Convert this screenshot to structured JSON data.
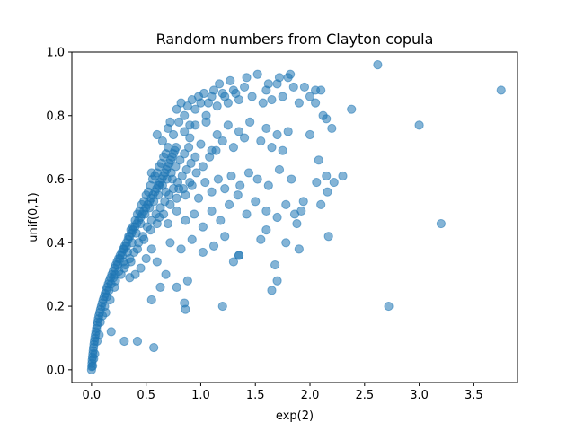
{
  "chart_data": {
    "type": "scatter",
    "title": "Random numbers from Clayton copula",
    "xlabel": "exp(2)",
    "ylabel": "unif(0,1)",
    "xlim": [
      -0.18,
      3.9
    ],
    "ylim": [
      -0.04,
      1.0
    ],
    "xticks": [
      0.0,
      0.5,
      1.0,
      1.5,
      2.0,
      2.5,
      3.0,
      3.5
    ],
    "xtick_labels": [
      "0.0",
      "0.5",
      "1.0",
      "1.5",
      "2.0",
      "2.5",
      "3.0",
      "3.5"
    ],
    "yticks": [
      0.0,
      0.2,
      0.4,
      0.6,
      0.8,
      1.0
    ],
    "ytick_labels": [
      "0.0",
      "0.2",
      "0.4",
      "0.6",
      "0.8",
      "1.0"
    ],
    "grid": false,
    "marker_color": "#1f77b4",
    "marker_opacity": 0.55,
    "series": [
      {
        "values": [
          [
            0.0,
            0.0
          ],
          [
            0.002,
            0.01
          ],
          [
            0.004,
            0.02
          ],
          [
            0.006,
            0.03
          ],
          [
            0.009,
            0.04
          ],
          [
            0.012,
            0.05
          ],
          [
            0.015,
            0.06
          ],
          [
            0.018,
            0.07
          ],
          [
            0.022,
            0.08
          ],
          [
            0.026,
            0.09
          ],
          [
            0.03,
            0.1
          ],
          [
            0.035,
            0.11
          ],
          [
            0.04,
            0.12
          ],
          [
            0.045,
            0.13
          ],
          [
            0.05,
            0.14
          ],
          [
            0.056,
            0.15
          ],
          [
            0.062,
            0.16
          ],
          [
            0.068,
            0.17
          ],
          [
            0.075,
            0.18
          ],
          [
            0.082,
            0.19
          ],
          [
            0.09,
            0.2
          ],
          [
            0.098,
            0.21
          ],
          [
            0.106,
            0.22
          ],
          [
            0.115,
            0.23
          ],
          [
            0.124,
            0.24
          ],
          [
            0.133,
            0.25
          ],
          [
            0.143,
            0.26
          ],
          [
            0.153,
            0.27
          ],
          [
            0.164,
            0.28
          ],
          [
            0.175,
            0.29
          ],
          [
            0.186,
            0.3
          ],
          [
            0.198,
            0.31
          ],
          [
            0.21,
            0.32
          ],
          [
            0.222,
            0.33
          ],
          [
            0.235,
            0.34
          ],
          [
            0.248,
            0.35
          ],
          [
            0.262,
            0.36
          ],
          [
            0.276,
            0.37
          ],
          [
            0.29,
            0.38
          ],
          [
            0.305,
            0.39
          ],
          [
            0.32,
            0.4
          ],
          [
            0.335,
            0.41
          ],
          [
            0.35,
            0.42
          ],
          [
            0.366,
            0.43
          ],
          [
            0.382,
            0.44
          ],
          [
            0.398,
            0.45
          ],
          [
            0.414,
            0.46
          ],
          [
            0.43,
            0.47
          ],
          [
            0.447,
            0.48
          ],
          [
            0.464,
            0.49
          ],
          [
            0.48,
            0.5
          ],
          [
            0.497,
            0.51
          ],
          [
            0.514,
            0.52
          ],
          [
            0.53,
            0.53
          ],
          [
            0.547,
            0.54
          ],
          [
            0.563,
            0.55
          ],
          [
            0.58,
            0.56
          ],
          [
            0.596,
            0.57
          ],
          [
            0.612,
            0.58
          ],
          [
            0.628,
            0.59
          ],
          [
            0.643,
            0.6
          ],
          [
            0.658,
            0.61
          ],
          [
            0.672,
            0.62
          ],
          [
            0.686,
            0.63
          ],
          [
            0.7,
            0.64
          ],
          [
            0.713,
            0.65
          ],
          [
            0.726,
            0.66
          ],
          [
            0.738,
            0.67
          ],
          [
            0.75,
            0.68
          ],
          [
            0.762,
            0.69
          ],
          [
            0.774,
            0.7
          ],
          [
            0.01,
            0.012
          ],
          [
            0.02,
            0.035
          ],
          [
            0.03,
            0.05
          ],
          [
            0.05,
            0.09
          ],
          [
            0.07,
            0.11
          ],
          [
            0.08,
            0.15
          ],
          [
            0.1,
            0.17
          ],
          [
            0.12,
            0.2
          ],
          [
            0.14,
            0.23
          ],
          [
            0.16,
            0.25
          ],
          [
            0.18,
            0.27
          ],
          [
            0.2,
            0.29
          ],
          [
            0.22,
            0.3
          ],
          [
            0.24,
            0.33
          ],
          [
            0.26,
            0.35
          ],
          [
            0.28,
            0.36
          ],
          [
            0.3,
            0.38
          ],
          [
            0.32,
            0.39
          ],
          [
            0.34,
            0.42
          ],
          [
            0.36,
            0.44
          ],
          [
            0.38,
            0.45
          ],
          [
            0.4,
            0.47
          ],
          [
            0.42,
            0.49
          ],
          [
            0.44,
            0.5
          ],
          [
            0.46,
            0.52
          ],
          [
            0.48,
            0.53
          ],
          [
            0.5,
            0.55
          ],
          [
            0.52,
            0.56
          ],
          [
            0.54,
            0.58
          ],
          [
            0.56,
            0.6
          ],
          [
            0.58,
            0.61
          ],
          [
            0.6,
            0.62
          ],
          [
            0.62,
            0.64
          ],
          [
            0.64,
            0.65
          ],
          [
            0.66,
            0.67
          ],
          [
            0.68,
            0.68
          ],
          [
            0.7,
            0.7
          ],
          [
            0.13,
            0.18
          ],
          [
            0.17,
            0.22
          ],
          [
            0.21,
            0.26
          ],
          [
            0.25,
            0.31
          ],
          [
            0.29,
            0.34
          ],
          [
            0.33,
            0.37
          ],
          [
            0.37,
            0.4
          ],
          [
            0.41,
            0.43
          ],
          [
            0.45,
            0.46
          ],
          [
            0.49,
            0.49
          ],
          [
            0.53,
            0.51
          ],
          [
            0.57,
            0.53
          ],
          [
            0.61,
            0.55
          ],
          [
            0.65,
            0.58
          ],
          [
            0.69,
            0.6
          ],
          [
            0.73,
            0.62
          ],
          [
            0.77,
            0.64
          ],
          [
            0.81,
            0.66
          ],
          [
            0.85,
            0.68
          ],
          [
            0.89,
            0.7
          ],
          [
            0.22,
            0.28
          ],
          [
            0.27,
            0.3
          ],
          [
            0.31,
            0.33
          ],
          [
            0.35,
            0.35
          ],
          [
            0.39,
            0.37
          ],
          [
            0.43,
            0.4
          ],
          [
            0.47,
            0.42
          ],
          [
            0.51,
            0.45
          ],
          [
            0.55,
            0.47
          ],
          [
            0.59,
            0.49
          ],
          [
            0.63,
            0.51
          ],
          [
            0.67,
            0.53
          ],
          [
            0.71,
            0.55
          ],
          [
            0.75,
            0.57
          ],
          [
            0.79,
            0.59
          ],
          [
            0.83,
            0.61
          ],
          [
            0.87,
            0.63
          ],
          [
            0.91,
            0.65
          ],
          [
            0.95,
            0.67
          ],
          [
            0.3,
            0.32
          ],
          [
            0.36,
            0.34
          ],
          [
            0.42,
            0.38
          ],
          [
            0.48,
            0.41
          ],
          [
            0.54,
            0.44
          ],
          [
            0.6,
            0.46
          ],
          [
            0.66,
            0.49
          ],
          [
            0.72,
            0.52
          ],
          [
            0.78,
            0.54
          ],
          [
            0.84,
            0.57
          ],
          [
            0.9,
            0.59
          ],
          [
            0.96,
            0.62
          ],
          [
            1.02,
            0.64
          ],
          [
            1.08,
            0.67
          ],
          [
            1.14,
            0.69
          ],
          [
            0.6,
            0.74
          ],
          [
            0.65,
            0.72
          ],
          [
            0.7,
            0.76
          ],
          [
            0.75,
            0.74
          ],
          [
            0.8,
            0.78
          ],
          [
            0.85,
            0.8
          ],
          [
            0.9,
            0.77
          ],
          [
            0.95,
            0.82
          ],
          [
            1.0,
            0.84
          ],
          [
            1.05,
            0.8
          ],
          [
            1.1,
            0.86
          ],
          [
            1.15,
            0.83
          ],
          [
            1.2,
            0.87
          ],
          [
            1.25,
            0.84
          ],
          [
            1.3,
            0.88
          ],
          [
            1.35,
            0.85
          ],
          [
            1.4,
            0.89
          ],
          [
            0.72,
            0.78
          ],
          [
            0.78,
            0.82
          ],
          [
            0.82,
            0.84
          ],
          [
            0.88,
            0.83
          ],
          [
            0.92,
            0.85
          ],
          [
            0.98,
            0.86
          ],
          [
            1.03,
            0.87
          ],
          [
            1.07,
            0.84
          ],
          [
            1.12,
            0.88
          ],
          [
            1.17,
            0.9
          ],
          [
            1.22,
            0.86
          ],
          [
            1.27,
            0.91
          ],
          [
            1.32,
            0.87
          ],
          [
            1.42,
            0.92
          ],
          [
            1.47,
            0.86
          ],
          [
            1.52,
            0.93
          ],
          [
            1.57,
            0.84
          ],
          [
            0.85,
            0.75
          ],
          [
            0.9,
            0.73
          ],
          [
            0.95,
            0.77
          ],
          [
            1.0,
            0.71
          ],
          [
            1.05,
            0.78
          ],
          [
            1.1,
            0.69
          ],
          [
            1.15,
            0.74
          ],
          [
            1.2,
            0.72
          ],
          [
            1.25,
            0.77
          ],
          [
            1.3,
            0.7
          ],
          [
            1.35,
            0.75
          ],
          [
            1.4,
            0.73
          ],
          [
            1.45,
            0.78
          ],
          [
            1.55,
            0.72
          ],
          [
            1.6,
            0.76
          ],
          [
            1.65,
            0.7
          ],
          [
            1.7,
            0.74
          ],
          [
            1.75,
            0.69
          ],
          [
            1.8,
            0.75
          ],
          [
            1.6,
            0.88
          ],
          [
            1.65,
            0.85
          ],
          [
            1.7,
            0.9
          ],
          [
            1.75,
            0.86
          ],
          [
            1.8,
            0.92
          ],
          [
            1.85,
            0.89
          ],
          [
            1.9,
            0.84
          ],
          [
            1.95,
            0.89
          ],
          [
            2.0,
            0.86
          ],
          [
            2.05,
            0.88
          ],
          [
            1.82,
            0.93
          ],
          [
            1.72,
            0.92
          ],
          [
            1.62,
            0.9
          ],
          [
            0.55,
            0.62
          ],
          [
            0.62,
            0.58
          ],
          [
            0.68,
            0.56
          ],
          [
            0.74,
            0.6
          ],
          [
            0.8,
            0.57
          ],
          [
            0.86,
            0.55
          ],
          [
            0.92,
            0.58
          ],
          [
            0.98,
            0.54
          ],
          [
            1.04,
            0.59
          ],
          [
            1.1,
            0.56
          ],
          [
            1.16,
            0.6
          ],
          [
            1.22,
            0.57
          ],
          [
            1.28,
            0.61
          ],
          [
            1.36,
            0.58
          ],
          [
            1.44,
            0.62
          ],
          [
            1.52,
            0.6
          ],
          [
            1.62,
            0.58
          ],
          [
            1.72,
            0.63
          ],
          [
            1.83,
            0.6
          ],
          [
            0.62,
            0.48
          ],
          [
            0.7,
            0.46
          ],
          [
            0.78,
            0.5
          ],
          [
            0.86,
            0.47
          ],
          [
            0.94,
            0.49
          ],
          [
            1.02,
            0.45
          ],
          [
            1.1,
            0.5
          ],
          [
            1.18,
            0.47
          ],
          [
            1.26,
            0.52
          ],
          [
            1.34,
            0.55
          ],
          [
            1.42,
            0.49
          ],
          [
            1.5,
            0.53
          ],
          [
            1.6,
            0.5
          ],
          [
            1.7,
            0.48
          ],
          [
            1.78,
            0.52
          ],
          [
            1.86,
            0.49
          ],
          [
            1.94,
            0.53
          ],
          [
            0.72,
            0.4
          ],
          [
            0.82,
            0.38
          ],
          [
            0.92,
            0.41
          ],
          [
            1.02,
            0.37
          ],
          [
            1.12,
            0.39
          ],
          [
            1.22,
            0.42
          ],
          [
            1.35,
            0.36
          ],
          [
            0.68,
            0.3
          ],
          [
            0.78,
            0.26
          ],
          [
            0.88,
            0.28
          ],
          [
            0.5,
            0.35
          ],
          [
            0.55,
            0.38
          ],
          [
            0.6,
            0.34
          ],
          [
            0.45,
            0.32
          ],
          [
            0.4,
            0.3
          ],
          [
            0.35,
            0.29
          ],
          [
            0.57,
            0.07
          ],
          [
            0.42,
            0.09
          ],
          [
            0.3,
            0.09
          ],
          [
            0.18,
            0.12
          ],
          [
            0.55,
            0.22
          ],
          [
            0.63,
            0.26
          ],
          [
            0.85,
            0.21
          ],
          [
            0.86,
            0.19
          ],
          [
            1.2,
            0.2
          ],
          [
            1.35,
            0.36
          ],
          [
            1.3,
            0.34
          ],
          [
            1.65,
            0.25
          ],
          [
            1.7,
            0.28
          ],
          [
            1.78,
            0.4
          ],
          [
            1.88,
            0.46
          ],
          [
            1.9,
            0.38
          ],
          [
            1.92,
            0.5
          ],
          [
            1.68,
            0.33
          ],
          [
            1.6,
            0.44
          ],
          [
            1.55,
            0.41
          ],
          [
            2.05,
            0.84
          ],
          [
            2.1,
            0.88
          ],
          [
            2.15,
            0.79
          ],
          [
            2.2,
            0.76
          ],
          [
            2.12,
            0.8
          ],
          [
            2.0,
            0.74
          ],
          [
            2.08,
            0.66
          ],
          [
            2.15,
            0.61
          ],
          [
            2.22,
            0.59
          ],
          [
            2.06,
            0.59
          ],
          [
            2.16,
            0.56
          ],
          [
            2.1,
            0.52
          ],
          [
            2.3,
            0.61
          ],
          [
            2.17,
            0.42
          ],
          [
            2.38,
            0.82
          ],
          [
            2.62,
            0.96
          ],
          [
            3.75,
            0.88
          ],
          [
            3.0,
            0.77
          ],
          [
            3.2,
            0.46
          ],
          [
            2.72,
            0.2
          ]
        ]
      }
    ]
  }
}
